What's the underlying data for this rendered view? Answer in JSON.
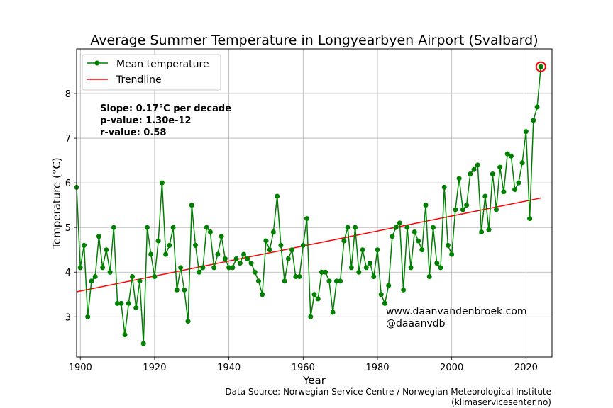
{
  "chart_data": {
    "type": "line",
    "title": "Average Summer Temperature in Longyearbyen Airport (Svalbard)",
    "xlabel": "Year",
    "ylabel": "Temperature (°C)",
    "xlim": [
      1899,
      2027
    ],
    "ylim": [
      2.1,
      9.0
    ],
    "xticks": [
      1900,
      1920,
      1940,
      1960,
      1980,
      2000,
      2020
    ],
    "yticks": [
      3,
      4,
      5,
      6,
      7,
      8
    ],
    "grid": true,
    "legend_position": "top-left",
    "series": [
      {
        "name": "Mean temperature",
        "color": "#008000",
        "marker": "circle",
        "x": [
          1899,
          1900,
          1901,
          1902,
          1903,
          1904,
          1905,
          1906,
          1907,
          1908,
          1909,
          1910,
          1911,
          1912,
          1913,
          1914,
          1915,
          1916,
          1917,
          1918,
          1919,
          1920,
          1921,
          1922,
          1923,
          1924,
          1925,
          1926,
          1927,
          1928,
          1929,
          1930,
          1931,
          1932,
          1933,
          1934,
          1935,
          1936,
          1937,
          1938,
          1939,
          1940,
          1941,
          1942,
          1943,
          1944,
          1945,
          1946,
          1947,
          1948,
          1949,
          1950,
          1951,
          1952,
          1953,
          1954,
          1955,
          1956,
          1957,
          1958,
          1959,
          1960,
          1961,
          1962,
          1963,
          1964,
          1965,
          1966,
          1967,
          1968,
          1969,
          1970,
          1971,
          1972,
          1973,
          1974,
          1975,
          1976,
          1977,
          1978,
          1979,
          1980,
          1981,
          1982,
          1983,
          1984,
          1985,
          1986,
          1987,
          1988,
          1989,
          1990,
          1991,
          1992,
          1993,
          1994,
          1995,
          1996,
          1997,
          1998,
          1999,
          2000,
          2001,
          2002,
          2003,
          2004,
          2005,
          2006,
          2007,
          2008,
          2009,
          2010,
          2011,
          2012,
          2013,
          2014,
          2015,
          2016,
          2017,
          2018,
          2019,
          2020,
          2021,
          2022,
          2023,
          2024
        ],
        "values": [
          5.9,
          4.1,
          4.6,
          3.0,
          3.8,
          3.9,
          4.8,
          4.1,
          4.5,
          4.0,
          5.0,
          3.3,
          3.3,
          2.6,
          3.3,
          3.9,
          3.2,
          3.8,
          2.4,
          5.0,
          4.4,
          3.9,
          4.7,
          6.0,
          4.4,
          4.6,
          5.0,
          3.6,
          4.1,
          3.6,
          2.9,
          5.5,
          4.6,
          4.0,
          4.1,
          5.0,
          4.9,
          4.1,
          4.4,
          4.8,
          4.3,
          4.1,
          4.1,
          4.3,
          4.2,
          4.4,
          4.3,
          4.2,
          4.0,
          3.8,
          3.5,
          4.7,
          4.5,
          4.9,
          5.7,
          4.6,
          3.8,
          4.3,
          4.5,
          3.9,
          3.9,
          4.6,
          5.2,
          3.0,
          3.5,
          3.4,
          4.0,
          4.0,
          3.8,
          3.1,
          3.8,
          3.8,
          4.7,
          5.0,
          4.1,
          5.0,
          4.0,
          4.5,
          4.1,
          4.2,
          3.9,
          4.5,
          3.5,
          3.3,
          3.7,
          4.8,
          5.0,
          5.1,
          3.6,
          5.0,
          4.1,
          4.9,
          4.7,
          4.5,
          5.5,
          3.9,
          5.0,
          4.2,
          4.1,
          5.9,
          4.6,
          4.4,
          5.4,
          6.1,
          5.4,
          5.5,
          6.2,
          6.3,
          6.4,
          4.9,
          5.7,
          4.95,
          6.2,
          5.4,
          6.35,
          5.8,
          6.65,
          6.6,
          5.85,
          6.0,
          6.45,
          7.15,
          5.2,
          7.4,
          7.7,
          8.6
        ]
      },
      {
        "name": "Trendline",
        "color": "#ff0000",
        "x": [
          1899,
          2024
        ],
        "values": [
          3.56,
          5.66
        ]
      }
    ],
    "highlight": {
      "x": 2024,
      "value": 8.6,
      "color": "#ff0000"
    },
    "annotations": {
      "stats": [
        "Slope: 0.17°C per decade",
        "p-value: 1.30e-12",
        "r-value: 0.58"
      ],
      "credits": [
        "www.daanvandenbroek.com",
        "@daaanvdb"
      ],
      "source": [
        "Data Source: Norwegian Service Centre / Norwegian Meteorological Institute",
        "(klimaservicesenter.no)"
      ]
    }
  }
}
